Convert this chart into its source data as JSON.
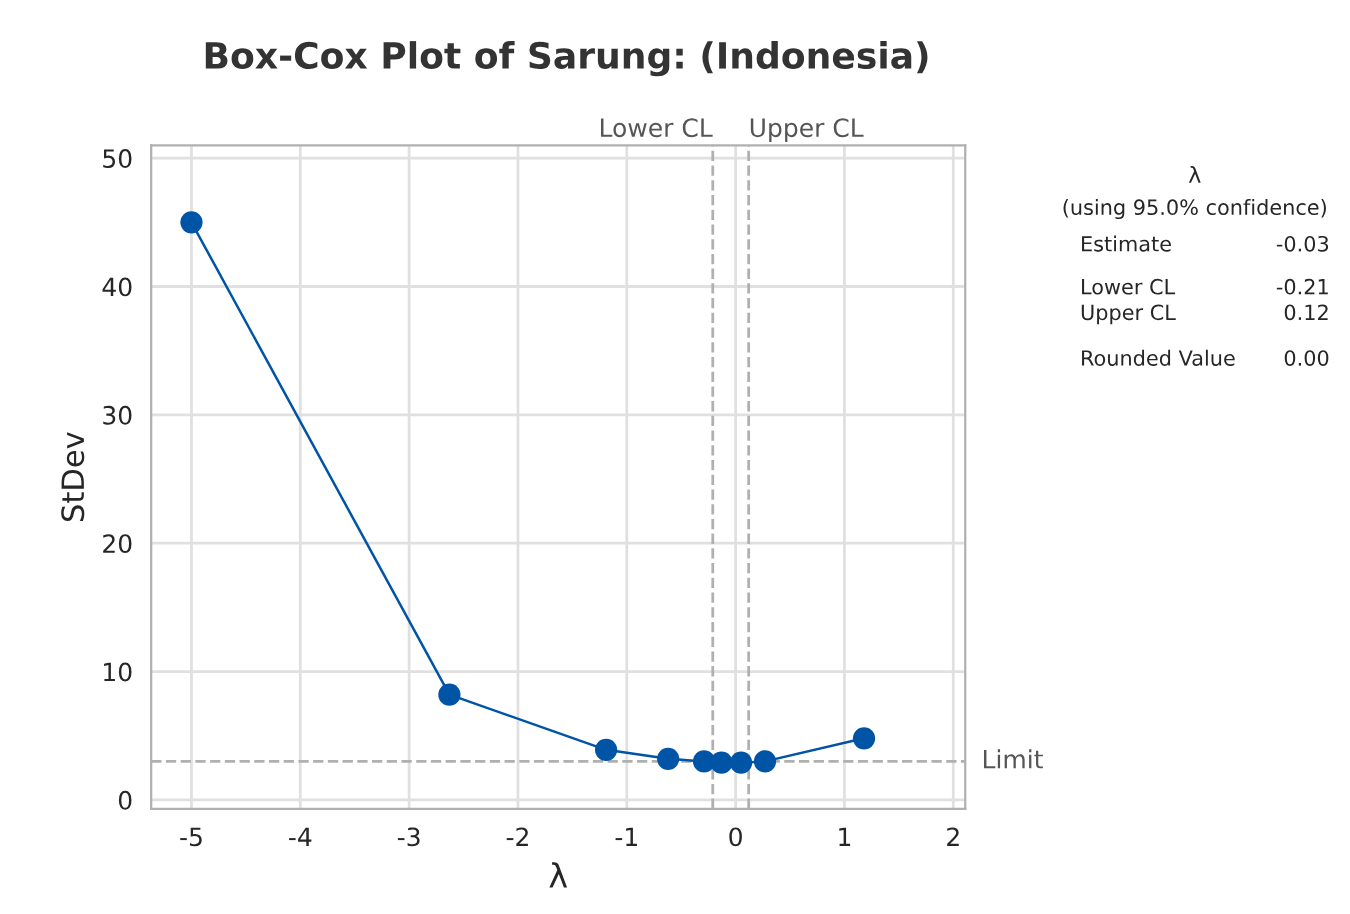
{
  "chart_data": {
    "type": "line",
    "title": "Box-Cox Plot of Sarung: (Indonesia)",
    "xlabel": "λ",
    "ylabel": "StDev",
    "x": [
      -5,
      -2.63,
      -1.19,
      -0.62,
      -0.29,
      -0.13,
      0.05,
      0.27,
      1.18
    ],
    "series": [
      {
        "color": "#0054a6",
        "values": [
          45,
          8.2,
          3.9,
          3.2,
          3.0,
          2.9,
          2.9,
          3.0,
          4.8
        ]
      }
    ],
    "xlim": [
      -5.37,
      2.11
    ],
    "xticks": [
      -5,
      -4,
      -3,
      -2,
      -1,
      0,
      1,
      2
    ],
    "ylim": [
      -0.7,
      51
    ],
    "yticks": [
      0,
      10,
      20,
      30,
      40,
      50
    ],
    "grid": true,
    "marker": "circle",
    "line_style": "solid",
    "ref_lines": [
      {
        "axis": "x",
        "value": -0.21,
        "label": "Lower CL",
        "color": "#b0b0b0",
        "line_style": "dashed"
      },
      {
        "axis": "x",
        "value": 0.12,
        "label": "Upper CL",
        "color": "#b0b0b0",
        "line_style": "dashed"
      },
      {
        "axis": "y",
        "value": 3.0,
        "label": "Limit",
        "color": "#b0b0b0",
        "line_style": "dashed"
      }
    ],
    "annotations": [
      "λ",
      "(using 95.0% confidence)",
      "Estimate",
      "-0.03",
      "Lower CL",
      "-0.21",
      "Upper CL",
      "0.12",
      "Rounded Value",
      "0.00"
    ]
  }
}
